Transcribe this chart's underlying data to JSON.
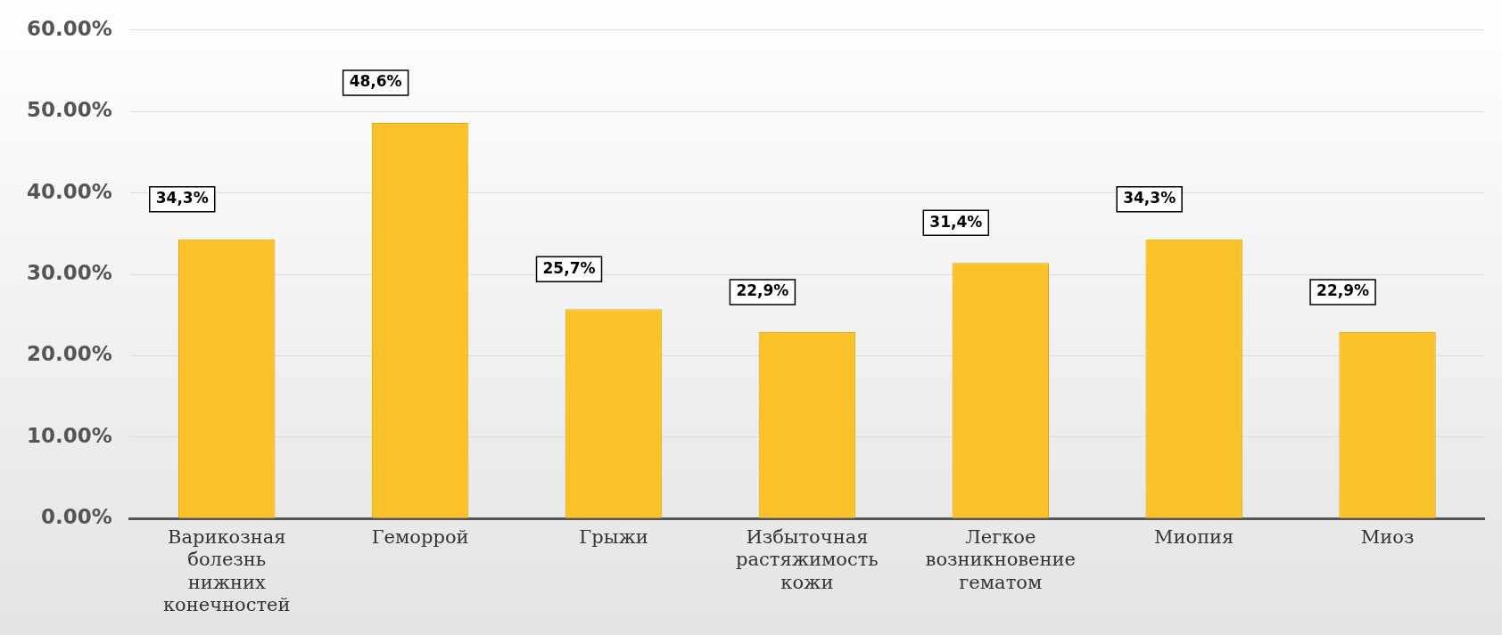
{
  "chart_data": {
    "type": "bar",
    "categories": [
      "Варикозная болезнь нижних конечностей",
      "Геморрой",
      "Грыжи",
      "Избыточная растяжимость кожи",
      "Легкое возникновение гематом",
      "Миопия",
      "Миоз"
    ],
    "values": [
      34.3,
      48.6,
      25.7,
      22.9,
      31.4,
      34.3,
      22.9
    ],
    "value_labels": [
      "34,3%",
      "48,6%",
      "25,7%",
      "22,9%",
      "31,4%",
      "34,3%",
      "22,9%"
    ],
    "color": "#fbc22a",
    "ylim": [
      0,
      60
    ],
    "yticks": [
      {
        "value": 0,
        "label": "0.00%"
      },
      {
        "value": 10,
        "label": "10.00%"
      },
      {
        "value": 20,
        "label": "20.00%"
      },
      {
        "value": 30,
        "label": "30.00%"
      },
      {
        "value": 40,
        "label": "40.00%"
      },
      {
        "value": 50,
        "label": "50.00%"
      },
      {
        "value": 60,
        "label": "60.00%"
      }
    ],
    "grid": "y",
    "legend": false
  }
}
